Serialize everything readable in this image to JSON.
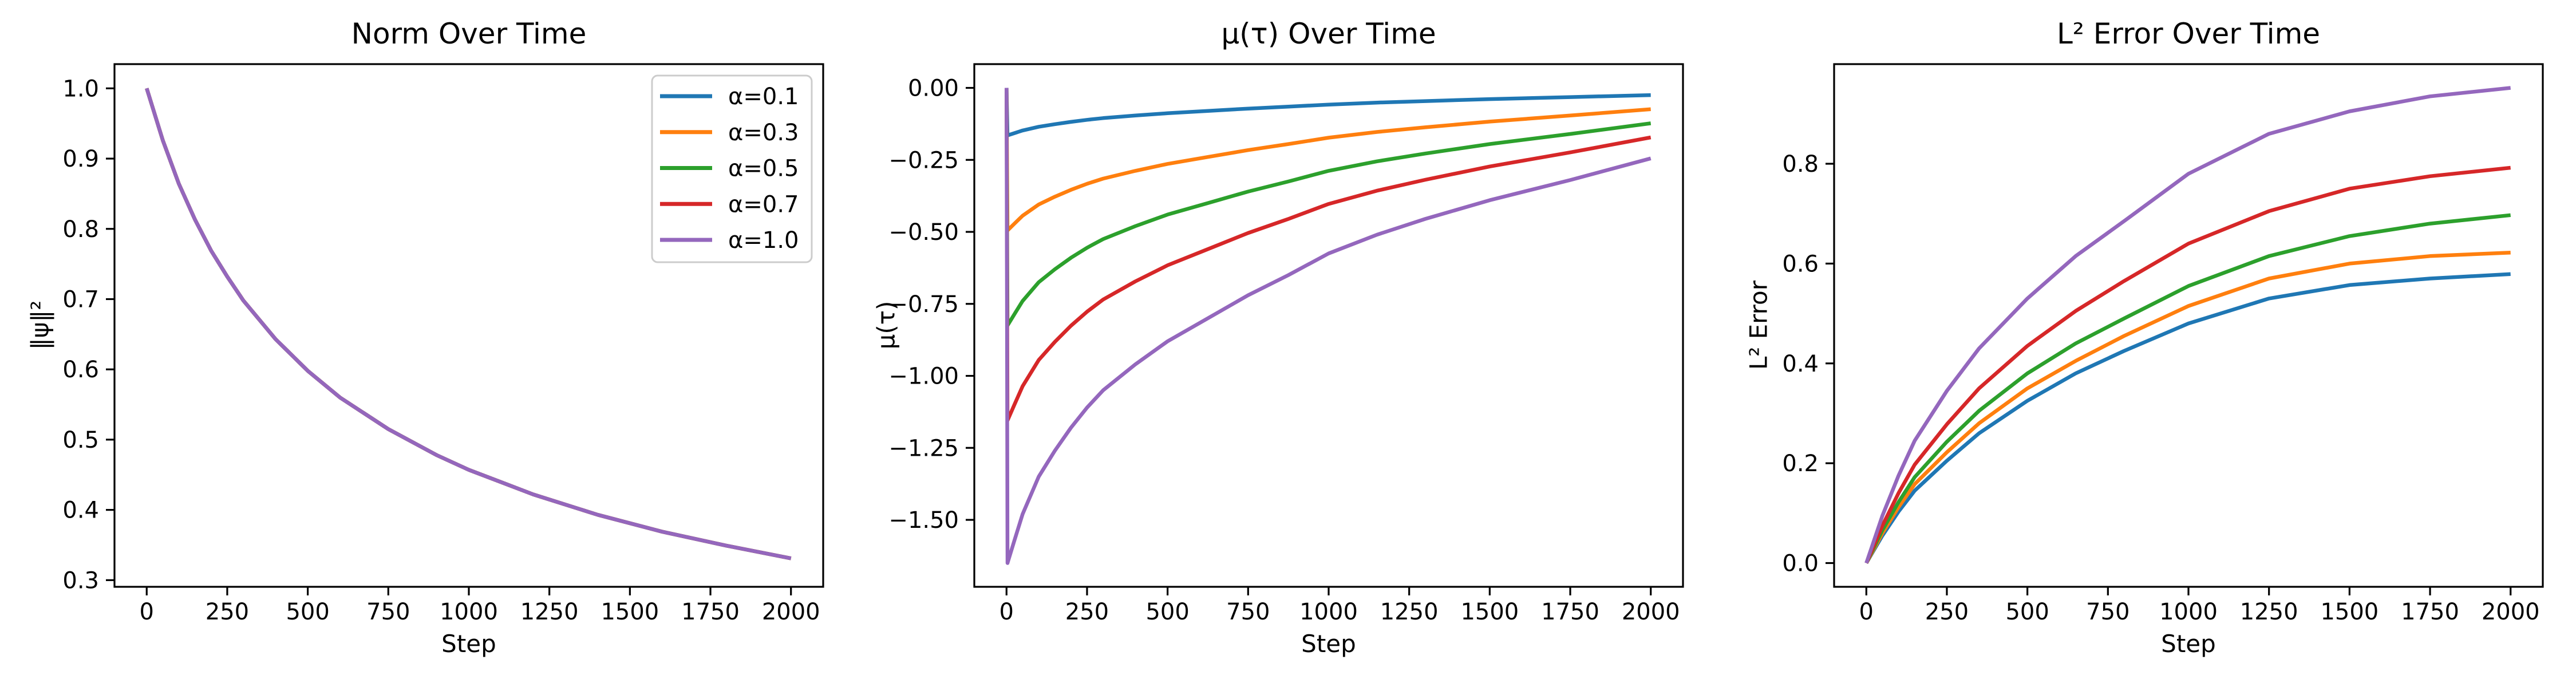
{
  "figure": {
    "kind": "matplotlib-figure",
    "background": "#ffffff",
    "text_color": "#000000"
  },
  "chart_data": [
    {
      "id": "norm",
      "type": "line",
      "title": "Norm Over Time",
      "xlabel": "Step",
      "ylabel": "‖ψ‖²",
      "grid": false,
      "xlim": [
        -100,
        2100
      ],
      "ylim": [
        0.2905,
        1.0345
      ],
      "xtick_values": [
        0,
        250,
        500,
        750,
        1000,
        1250,
        1500,
        1750,
        2000
      ],
      "xtick_labels": [
        "0",
        "250",
        "500",
        "750",
        "1000",
        "1250",
        "1500",
        "1750",
        "2000"
      ],
      "ytick_values": [
        1.0,
        0.9,
        0.8,
        0.7,
        0.6,
        0.5,
        0.4,
        0.3
      ],
      "ytick_labels": [
        "1.0",
        "0.9",
        "0.8",
        "0.7",
        "0.6",
        "0.5",
        "0.4",
        "0.3"
      ],
      "x": [
        0,
        50,
        100,
        150,
        200,
        250,
        300,
        400,
        500,
        600,
        750,
        900,
        1000,
        1200,
        1400,
        1600,
        1800,
        2000
      ],
      "y_all": [
        1.0,
        0.926,
        0.864,
        0.813,
        0.769,
        0.732,
        0.698,
        0.643,
        0.598,
        0.56,
        0.515,
        0.478,
        0.457,
        0.422,
        0.393,
        0.369,
        0.349,
        0.331
      ],
      "note": "all five series overlap exactly; purple drawn last",
      "legend": {
        "location": "upper right"
      },
      "series": [
        {
          "name": "α=0.1",
          "color": "#1f77b4"
        },
        {
          "name": "α=0.3",
          "color": "#ff7f0e"
        },
        {
          "name": "α=0.5",
          "color": "#2ca02c"
        },
        {
          "name": "α=0.7",
          "color": "#d62728"
        },
        {
          "name": "α=1.0",
          "color": "#9467bd"
        }
      ]
    },
    {
      "id": "mu",
      "type": "line",
      "title": "μ(τ) Over Time",
      "xlabel": "Step",
      "ylabel": "μ(τ)",
      "grid": false,
      "xlim": [
        -100,
        2100
      ],
      "ylim": [
        -1.7325,
        0.0825
      ],
      "xtick_values": [
        0,
        250,
        500,
        750,
        1000,
        1250,
        1500,
        1750,
        2000
      ],
      "xtick_labels": [
        "0",
        "250",
        "500",
        "750",
        "1000",
        "1250",
        "1500",
        "1750",
        "2000"
      ],
      "ytick_values": [
        0.0,
        -0.25,
        -0.5,
        -0.75,
        -1.0,
        -1.25,
        -1.5
      ],
      "ytick_labels": [
        "0.00",
        "−0.25",
        "−0.50",
        "−0.75",
        "−1.00",
        "−1.25",
        "−1.50"
      ],
      "x": [
        0,
        3,
        25,
        50,
        100,
        150,
        200,
        250,
        300,
        400,
        500,
        625,
        750,
        875,
        1000,
        1150,
        1300,
        1500,
        1750,
        2000
      ],
      "series": [
        {
          "name": "α=0.1",
          "color": "#1f77b4",
          "values": [
            0,
            -0.165,
            -0.157,
            -0.148,
            -0.135,
            -0.126,
            -0.118,
            -0.111,
            -0.105,
            -0.096,
            -0.088,
            -0.08,
            -0.072,
            -0.065,
            -0.058,
            -0.051,
            -0.046,
            -0.039,
            -0.032,
            -0.025
          ]
        },
        {
          "name": "α=0.3",
          "color": "#ff7f0e",
          "values": [
            0,
            -0.495,
            -0.471,
            -0.444,
            -0.405,
            -0.378,
            -0.354,
            -0.333,
            -0.315,
            -0.288,
            -0.264,
            -0.24,
            -0.216,
            -0.195,
            -0.173,
            -0.153,
            -0.137,
            -0.117,
            -0.096,
            -0.074
          ]
        },
        {
          "name": "α=0.5",
          "color": "#2ca02c",
          "values": [
            0,
            -0.825,
            -0.785,
            -0.74,
            -0.675,
            -0.63,
            -0.59,
            -0.555,
            -0.525,
            -0.48,
            -0.44,
            -0.4,
            -0.36,
            -0.325,
            -0.288,
            -0.255,
            -0.228,
            -0.195,
            -0.16,
            -0.123
          ]
        },
        {
          "name": "α=0.7",
          "color": "#d62728",
          "values": [
            0,
            -1.155,
            -1.099,
            -1.036,
            -0.945,
            -0.882,
            -0.826,
            -0.777,
            -0.735,
            -0.672,
            -0.616,
            -0.56,
            -0.504,
            -0.455,
            -0.403,
            -0.357,
            -0.319,
            -0.273,
            -0.224,
            -0.172
          ]
        },
        {
          "name": "α=1.0",
          "color": "#9467bd",
          "values": [
            0,
            -1.65,
            -1.57,
            -1.48,
            -1.35,
            -1.26,
            -1.18,
            -1.11,
            -1.05,
            -0.96,
            -0.88,
            -0.8,
            -0.72,
            -0.65,
            -0.575,
            -0.51,
            -0.455,
            -0.39,
            -0.32,
            -0.245
          ]
        }
      ]
    },
    {
      "id": "l2error",
      "type": "line",
      "title": "L² Error Over Time",
      "xlabel": "Step",
      "ylabel": "L² Error",
      "grid": false,
      "xlim": [
        -100,
        2100
      ],
      "ylim": [
        -0.0476,
        0.9996
      ],
      "xtick_values": [
        0,
        250,
        500,
        750,
        1000,
        1250,
        1500,
        1750,
        2000
      ],
      "xtick_labels": [
        "0",
        "250",
        "500",
        "750",
        "1000",
        "1250",
        "1500",
        "1750",
        "2000"
      ],
      "ytick_values": [
        0.0,
        0.2,
        0.4,
        0.6,
        0.8
      ],
      "ytick_labels": [
        "0.0",
        "0.2",
        "0.4",
        "0.6",
        "0.8"
      ],
      "x": [
        0,
        50,
        100,
        150,
        250,
        350,
        500,
        650,
        800,
        1000,
        1250,
        1500,
        1750,
        2000
      ],
      "series": [
        {
          "name": "α=0.1",
          "color": "#1f77b4",
          "values": [
            0,
            0.055,
            0.103,
            0.145,
            0.205,
            0.26,
            0.325,
            0.38,
            0.425,
            0.48,
            0.53,
            0.557,
            0.57,
            0.579
          ]
        },
        {
          "name": "α=0.3",
          "color": "#ff7f0e",
          "values": [
            0,
            0.06,
            0.112,
            0.158,
            0.222,
            0.28,
            0.35,
            0.405,
            0.455,
            0.515,
            0.57,
            0.6,
            0.615,
            0.622
          ]
        },
        {
          "name": "α=0.5",
          "color": "#2ca02c",
          "values": [
            0,
            0.066,
            0.122,
            0.172,
            0.243,
            0.305,
            0.38,
            0.44,
            0.49,
            0.555,
            0.615,
            0.655,
            0.68,
            0.697
          ]
        },
        {
          "name": "α=0.7",
          "color": "#d62728",
          "values": [
            0,
            0.075,
            0.14,
            0.197,
            0.278,
            0.35,
            0.435,
            0.505,
            0.565,
            0.64,
            0.705,
            0.75,
            0.775,
            0.792
          ]
        },
        {
          "name": "α=1.0",
          "color": "#9467bd",
          "values": [
            0,
            0.095,
            0.175,
            0.245,
            0.345,
            0.43,
            0.53,
            0.615,
            0.685,
            0.78,
            0.86,
            0.905,
            0.935,
            0.952
          ]
        }
      ]
    }
  ]
}
